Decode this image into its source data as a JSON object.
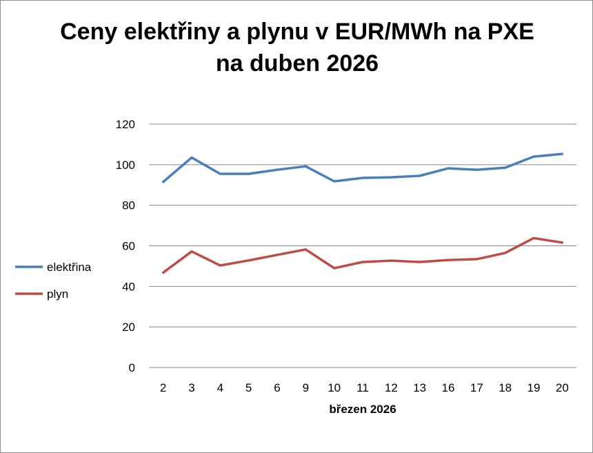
{
  "chart_data": {
    "type": "line",
    "title_line1": "Ceny elektřiny a plynu v EUR/MWh na PXE",
    "title_line2": "na duben 2026",
    "xlabel": "březen 2026",
    "ylabel": "",
    "ylim": [
      0,
      120
    ],
    "yticks": [
      0,
      20,
      40,
      60,
      80,
      100,
      120
    ],
    "grid": true,
    "legend_position": "left",
    "categories": [
      "2",
      "3",
      "4",
      "5",
      "6",
      "9",
      "10",
      "11",
      "12",
      "13",
      "16",
      "17",
      "18",
      "19",
      "20"
    ],
    "series": [
      {
        "name": "elektřina",
        "color": "#4a7ebb",
        "values": [
          91.5,
          103.5,
          95.5,
          95.5,
          97.5,
          99.2,
          91.8,
          93.5,
          93.8,
          94.5,
          98.2,
          97.5,
          98.5,
          104,
          105.3
        ]
      },
      {
        "name": "plyn",
        "color": "#be4b48",
        "values": [
          46.8,
          57.2,
          50.3,
          52.8,
          55.5,
          58.2,
          49,
          52,
          52.7,
          52,
          53,
          53.4,
          56.5,
          63.8,
          61.6
        ]
      }
    ]
  }
}
